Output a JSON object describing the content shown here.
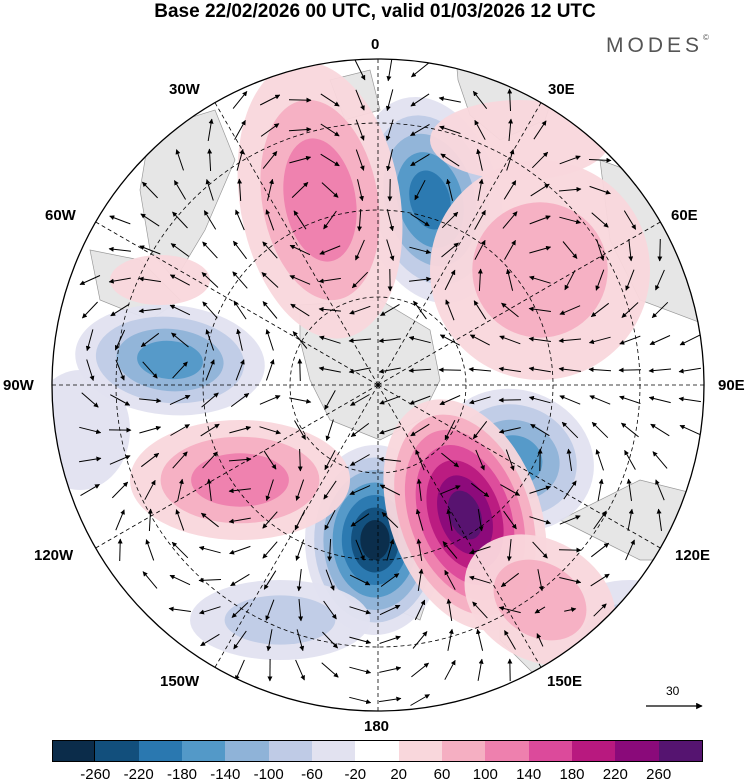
{
  "title": "Base 22/02/2026 00 UTC, valid 01/03/2026 12 UTC",
  "brand": {
    "name": "MODES",
    "mark": "©"
  },
  "longitude_labels": [
    "0",
    "30E",
    "60E",
    "90E",
    "120E",
    "150E",
    "180",
    "150W",
    "120W",
    "90W",
    "60W",
    "30W"
  ],
  "reference_vector": {
    "value": "30"
  },
  "colorbar": {
    "ticks": [
      "-260",
      "-220",
      "-180",
      "-140",
      "-100",
      "-60",
      "-20",
      "20",
      "60",
      "100",
      "140",
      "180",
      "220",
      "260"
    ],
    "colors": [
      "#0b2c4a",
      "#124f7c",
      "#2a78b0",
      "#5399c8",
      "#8fb3d8",
      "#bfcbe6",
      "#e2e2f0",
      "#ffffff",
      "#f9d7dc",
      "#f5afc2",
      "#ee80ae",
      "#dc4a9b",
      "#b8197f",
      "#8a0a7a",
      "#551470"
    ]
  },
  "colors": {
    "land": "#e6e6e6",
    "coast": "#9a9a9a",
    "grid": "#000000",
    "neg": "#3a7db7",
    "pos": "#d24693"
  }
}
